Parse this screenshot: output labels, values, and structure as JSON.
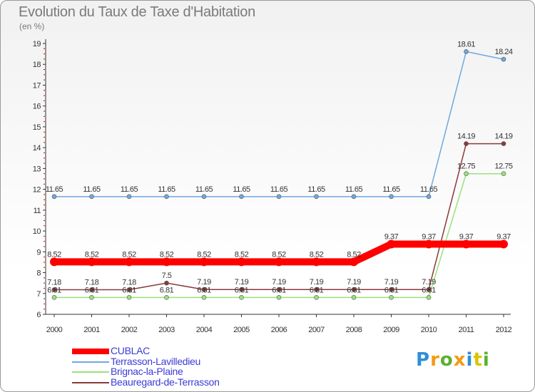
{
  "chart_data": {
    "type": "line",
    "title": "Evolution du Taux de Taxe d'Habitation",
    "ylabel": "(en %)",
    "xlabel": "",
    "ylim": [
      6,
      19
    ],
    "yticks": [
      "6",
      "7",
      "8",
      "9",
      "10",
      "11",
      "12",
      "13",
      "14",
      "15",
      "16",
      "17",
      "18",
      "19"
    ],
    "categories": [
      "2000",
      "2001",
      "2002",
      "2003",
      "2004",
      "2005",
      "2006",
      "2007",
      "2008",
      "2009",
      "2010",
      "2011",
      "2012"
    ],
    "series": [
      {
        "name": "CUBLAC",
        "color": "#ff0000",
        "values": [
          8.52,
          8.52,
          8.52,
          8.52,
          8.52,
          8.52,
          8.52,
          8.52,
          8.52,
          9.37,
          9.37,
          9.37,
          9.37
        ],
        "labels": [
          "8.52",
          "8.52",
          "8.52",
          "8.52",
          "8.52",
          "8.52",
          "8.52",
          "8.52",
          "8.52",
          "9.37",
          "9.37",
          "9.37",
          "9.37"
        ]
      },
      {
        "name": "Terrasson-Lavilledieu",
        "color": "#6fa8dc",
        "values": [
          11.65,
          11.65,
          11.65,
          11.65,
          11.65,
          11.65,
          11.65,
          11.65,
          11.65,
          11.65,
          11.65,
          18.61,
          18.24
        ],
        "labels": [
          "11.65",
          "11.65",
          "11.65",
          "11.65",
          "11.65",
          "11.65",
          "11.65",
          "11.65",
          "11.65",
          "11.65",
          "11.65",
          "18.61",
          "18.24"
        ]
      },
      {
        "name": "Brignac-la-Plaine",
        "color": "#99e27a",
        "values": [
          6.81,
          6.81,
          6.81,
          6.81,
          6.81,
          6.81,
          6.81,
          6.81,
          6.81,
          6.81,
          6.81,
          12.75,
          12.75
        ],
        "labels": [
          "6.81",
          "6.81",
          "6.81",
          "6.81",
          "6.81",
          "6.81",
          "6.81",
          "6.81",
          "6.81",
          "6.81",
          "6.81",
          "12.75",
          "12.75"
        ]
      },
      {
        "name": "Beauregard-de-Terrasson",
        "color": "#8b3a3a",
        "values": [
          7.18,
          7.18,
          7.18,
          7.5,
          7.19,
          7.19,
          7.19,
          7.19,
          7.19,
          7.19,
          7.19,
          14.19,
          14.19
        ],
        "labels": [
          "7.18",
          "7.18",
          "7.18",
          "7.5",
          "7.19",
          "7.19",
          "7.19",
          "7.19",
          "7.19",
          "7.19",
          "7.19",
          "14.19",
          "14.19"
        ]
      }
    ],
    "grid": false,
    "legend": "bottom-left"
  },
  "logo": {
    "letters": [
      "P",
      "r",
      "o",
      "x",
      "i",
      "t",
      "i"
    ],
    "colors": [
      "#2f8fd8",
      "#f29c11",
      "#5cb030",
      "#f29c11",
      "#2f8fd8",
      "#d9c600",
      "#5cb030"
    ]
  }
}
